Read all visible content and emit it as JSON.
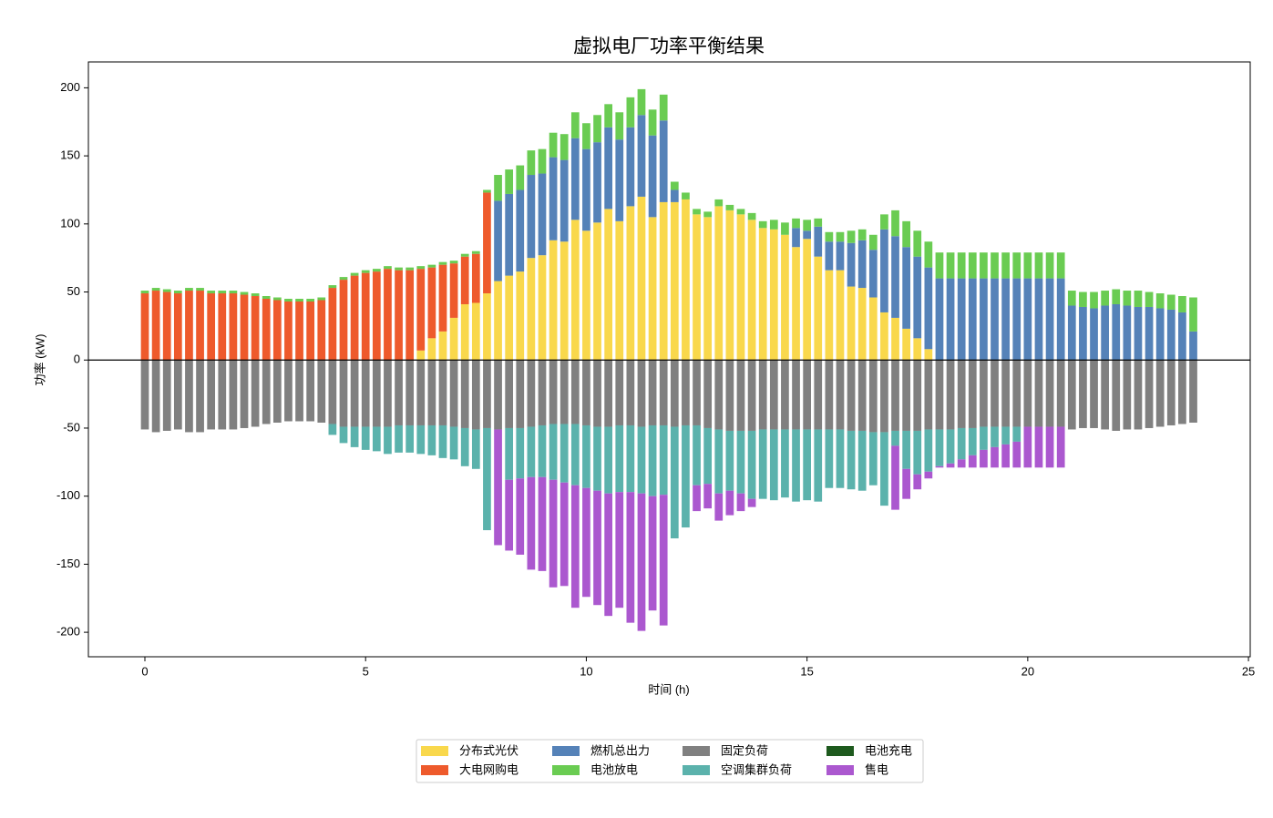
{
  "chart_data": {
    "type": "stacked_bar",
    "title": "虚拟电厂功率平衡结果",
    "xlabel": "时间 (h)",
    "ylabel": "功率 (kW)",
    "x": [
      0,
      0.25,
      0.5,
      0.75,
      1,
      1.25,
      1.5,
      1.75,
      2,
      2.25,
      2.5,
      2.75,
      3,
      3.25,
      3.5,
      3.75,
      4,
      4.25,
      4.5,
      4.75,
      5,
      5.25,
      5.5,
      5.75,
      6,
      6.25,
      6.5,
      6.75,
      7,
      7.25,
      7.5,
      7.75,
      8,
      8.25,
      8.5,
      8.75,
      9,
      9.25,
      9.5,
      9.75,
      10,
      10.25,
      10.5,
      10.75,
      11,
      11.25,
      11.5,
      11.75,
      12,
      12.25,
      12.5,
      12.75,
      13,
      13.25,
      13.5,
      13.75,
      14,
      14.25,
      14.5,
      14.75,
      15,
      15.25,
      15.5,
      15.75,
      16,
      16.25,
      16.5,
      16.75,
      17,
      17.25,
      17.5,
      17.75,
      18,
      18.25,
      18.5,
      18.75,
      19,
      19.25,
      19.5,
      19.75,
      20,
      20.25,
      20.5,
      20.75,
      21,
      21.25,
      21.5,
      21.75,
      22,
      22.25,
      22.5,
      22.75,
      23,
      23.25,
      23.5,
      23.75
    ],
    "series": [
      {
        "name": "分布式光伏",
        "color": "#f9d84c",
        "values": [
          0,
          0,
          0,
          0,
          0,
          0,
          0,
          0,
          0,
          0,
          0,
          0,
          0,
          0,
          0,
          0,
          0,
          0,
          0,
          0,
          0,
          0,
          0,
          0,
          0,
          7,
          16,
          21,
          31,
          41,
          42,
          49,
          58,
          62,
          65,
          75,
          77,
          88,
          87,
          103,
          95,
          101,
          111,
          102,
          113,
          120,
          105,
          116,
          116,
          118,
          107,
          105,
          113,
          110,
          107,
          103,
          97,
          96,
          92,
          83,
          89,
          76,
          66,
          66,
          54,
          53,
          46,
          35,
          31,
          23,
          16,
          8,
          0,
          0,
          0,
          0,
          0,
          0,
          0,
          0,
          0,
          0,
          0,
          0,
          0,
          0,
          0,
          0,
          0,
          0,
          0,
          0,
          0,
          0,
          0,
          0
        ]
      },
      {
        "name": "大电网购电",
        "color": "#ee5a2c",
        "values": [
          49,
          51,
          50,
          49,
          51,
          51,
          49,
          49,
          49,
          48,
          47,
          45,
          44,
          43,
          43,
          43,
          44,
          53,
          59,
          62,
          64,
          65,
          67,
          66,
          66,
          60,
          52,
          49,
          40,
          35,
          36,
          74,
          0,
          0,
          0,
          0,
          0,
          0,
          0,
          0,
          0,
          0,
          0,
          0,
          0,
          0,
          0,
          0,
          0,
          0,
          0,
          0,
          0,
          0,
          0,
          0,
          0,
          0,
          0,
          0,
          0,
          0,
          0,
          0,
          0,
          0,
          0,
          0,
          0,
          0,
          0,
          0,
          0,
          0,
          0,
          0,
          0,
          0,
          0,
          0,
          0,
          0,
          0,
          0,
          0,
          0,
          0,
          0,
          0,
          0,
          0,
          0,
          0,
          0,
          0,
          0
        ]
      },
      {
        "name": "燃机总出力",
        "color": "#5582b8",
        "values": [
          0,
          0,
          0,
          0,
          0,
          0,
          0,
          0,
          0,
          0,
          0,
          0,
          0,
          0,
          0,
          0,
          0,
          0,
          0,
          0,
          0,
          0,
          0,
          0,
          0,
          0,
          0,
          0,
          0,
          0,
          0,
          0,
          59,
          60,
          60,
          61,
          60,
          61,
          60,
          60,
          60,
          59,
          60,
          60,
          58,
          60,
          60,
          60,
          9,
          0,
          0,
          0,
          0,
          0,
          0,
          0,
          0,
          0,
          0,
          14,
          6,
          22,
          21,
          21,
          32,
          35,
          35,
          61,
          60,
          60,
          60,
          60,
          60,
          60,
          60,
          60,
          60,
          60,
          60,
          60,
          60,
          60,
          60,
          60,
          40,
          39,
          38,
          40,
          41,
          40,
          39,
          39,
          38,
          37,
          35,
          21
        ]
      },
      {
        "name": "电池放电",
        "color": "#6acc52",
        "values": [
          2,
          2,
          2,
          2,
          2,
          2,
          2,
          2,
          2,
          2,
          2,
          2,
          2,
          2,
          2,
          2,
          2,
          2,
          2,
          2,
          2,
          2,
          2,
          2,
          2,
          2,
          2,
          2,
          2,
          2,
          2,
          2,
          19,
          18,
          18,
          18,
          18,
          18,
          19,
          19,
          19,
          20,
          17,
          20,
          22,
          19,
          19,
          19,
          6,
          5,
          4,
          4,
          5,
          4,
          4,
          5,
          5,
          7,
          9,
          7,
          8,
          6,
          7,
          7,
          9,
          8,
          11,
          11,
          19,
          19,
          19,
          19,
          19,
          19,
          19,
          19,
          19,
          19,
          19,
          19,
          19,
          19,
          19,
          19,
          11,
          11,
          12,
          11,
          11,
          11,
          12,
          11,
          11,
          11,
          12,
          25
        ]
      },
      {
        "name": "固定负荷",
        "color": "#808080",
        "values": [
          -51,
          -53,
          -52,
          -51,
          -53,
          -53,
          -51,
          -51,
          -51,
          -50,
          -49,
          -47,
          -46,
          -45,
          -45,
          -45,
          -46,
          -47,
          -49,
          -49,
          -49,
          -49,
          -49,
          -48,
          -48,
          -48,
          -48,
          -48,
          -49,
          -50,
          -51,
          -50,
          -51,
          -50,
          -50,
          -49,
          -48,
          -47,
          -47,
          -47,
          -48,
          -49,
          -49,
          -48,
          -48,
          -49,
          -48,
          -48,
          -49,
          -48,
          -48,
          -50,
          -51,
          -52,
          -52,
          -52,
          -51,
          -51,
          -51,
          -51,
          -51,
          -51,
          -51,
          -51,
          -52,
          -52,
          -53,
          -53,
          -52,
          -52,
          -52,
          -51,
          -51,
          -51,
          -50,
          -50,
          -49,
          -49,
          -49,
          -49,
          -49,
          -49,
          -49,
          -49,
          -51,
          -50,
          -50,
          -51,
          -52,
          -51,
          -51,
          -50,
          -49,
          -48,
          -47,
          -46
        ]
      },
      {
        "name": "空调集群负荷",
        "color": "#5bb2ac",
        "values": [
          0,
          0,
          0,
          0,
          0,
          0,
          0,
          0,
          0,
          0,
          0,
          0,
          0,
          0,
          0,
          0,
          0,
          -8,
          -12,
          -15,
          -17,
          -18,
          -20,
          -20,
          -20,
          -21,
          -22,
          -24,
          -24,
          -28,
          -29,
          -75,
          0,
          -38,
          -37,
          -37,
          -38,
          -41,
          -43,
          -45,
          -46,
          -47,
          -49,
          -49,
          -49,
          -49,
          -52,
          -51,
          -82,
          -75,
          -44,
          -41,
          -47,
          -44,
          -46,
          -50,
          -51,
          -52,
          -50,
          -53,
          -52,
          -53,
          -43,
          -43,
          -43,
          -44,
          -39,
          -54,
          -11,
          -28,
          -32,
          -31,
          -27,
          -25,
          -23,
          -20,
          -17,
          -15,
          -13,
          -11,
          0,
          0,
          0,
          0,
          0,
          0,
          0,
          0,
          0,
          0,
          0,
          0,
          0,
          0,
          0,
          0
        ]
      },
      {
        "name": "电池充电",
        "color": "#1e5a1e",
        "values": [
          0,
          0,
          0,
          0,
          0,
          0,
          0,
          0,
          0,
          0,
          0,
          0,
          0,
          0,
          0,
          0,
          0,
          0,
          0,
          0,
          0,
          0,
          0,
          0,
          0,
          0,
          0,
          0,
          0,
          0,
          0,
          0,
          0,
          0,
          0,
          0,
          0,
          0,
          0,
          0,
          0,
          0,
          0,
          0,
          0,
          0,
          0,
          0,
          0,
          0,
          0,
          0,
          0,
          0,
          0,
          0,
          0,
          0,
          0,
          0,
          0,
          0,
          0,
          0,
          0,
          0,
          0,
          0,
          0,
          0,
          0,
          0,
          0,
          0,
          0,
          0,
          0,
          0,
          0,
          0,
          0,
          0,
          0,
          0,
          0,
          0,
          0,
          0,
          0,
          0,
          0,
          0,
          0,
          0,
          0,
          0
        ]
      },
      {
        "name": "售电",
        "color": "#ab58cf",
        "values": [
          0,
          0,
          0,
          0,
          0,
          0,
          0,
          0,
          0,
          0,
          0,
          0,
          0,
          0,
          0,
          0,
          0,
          0,
          0,
          0,
          0,
          0,
          0,
          0,
          0,
          0,
          0,
          0,
          0,
          0,
          0,
          0,
          -85,
          -52,
          -56,
          -68,
          -69,
          -79,
          -76,
          -90,
          -80,
          -84,
          -90,
          -85,
          -96,
          -101,
          -84,
          -96,
          0,
          0,
          -19,
          -18,
          -20,
          -18,
          -13,
          -6,
          0,
          0,
          0,
          0,
          0,
          0,
          0,
          0,
          0,
          0,
          0,
          0,
          -47,
          -22,
          -11,
          -5,
          -1,
          -3,
          -6,
          -9,
          -13,
          -15,
          -17,
          -19,
          -30,
          -30,
          -30,
          -30,
          0,
          0,
          0,
          0,
          0,
          0,
          0,
          0,
          0,
          0,
          0,
          0
        ]
      }
    ],
    "xlim": [
      -1.28,
      25.04
    ],
    "ylim": [
      -218,
      219
    ],
    "xticks": [
      0,
      5,
      10,
      15,
      20,
      25
    ],
    "yticks": [
      -200,
      -150,
      -100,
      -50,
      0,
      50,
      100,
      150,
      200
    ],
    "reference_line": 0,
    "legend": "lower center",
    "grid": false
  }
}
